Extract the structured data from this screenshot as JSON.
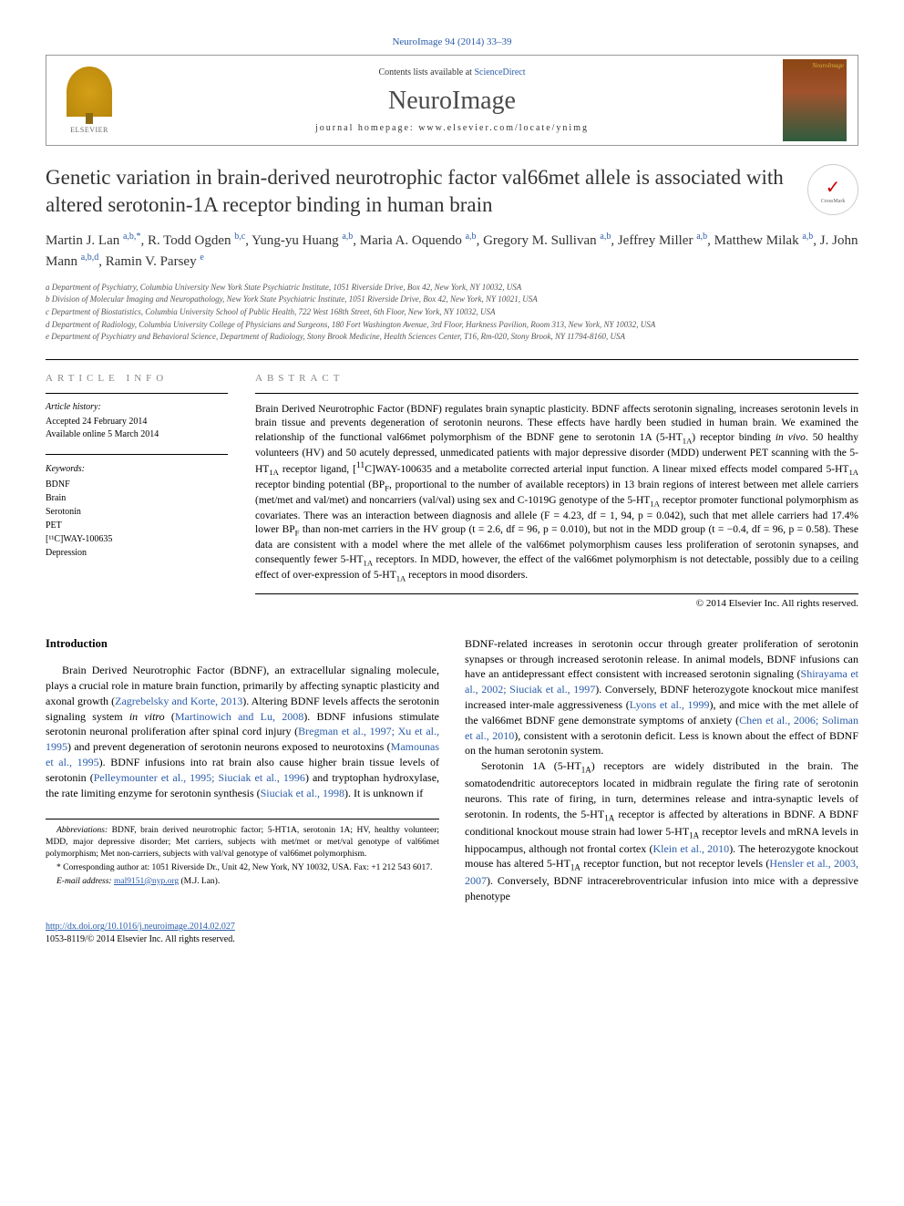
{
  "header": {
    "citation": "NeuroImage 94 (2014) 33–39",
    "contents_prefix": "Contents lists available at ",
    "contents_link": "ScienceDirect",
    "journal_name": "NeuroImage",
    "homepage_label": "journal homepage: www.elsevier.com/locate/ynimg",
    "publisher": "ELSEVIER",
    "thumb_label": "NeuroImage"
  },
  "crossmark": "CrossMark",
  "title": "Genetic variation in brain-derived neurotrophic factor val66met allele is associated with altered serotonin-1A receptor binding in human brain",
  "authors_html": "Martin J. Lan <sup class='sup-link'>a,b,</sup><sup class='sup-link'>*</sup>, R. Todd Ogden <sup class='sup-link'>b,c</sup>, Yung-yu Huang <sup class='sup-link'>a,b</sup>, Maria A. Oquendo <sup class='sup-link'>a,b</sup>, Gregory M. Sullivan <sup class='sup-link'>a,b</sup>, Jeffrey Miller <sup class='sup-link'>a,b</sup>, Matthew Milak <sup class='sup-link'>a,b</sup>, J. John Mann <sup class='sup-link'>a,b,d</sup>, Ramin V. Parsey <sup class='sup-link'>e</sup>",
  "affiliations": [
    "a  Department of Psychiatry, Columbia University New York State Psychiatric Institute, 1051 Riverside Drive, Box 42, New York, NY 10032, USA",
    "b  Division of Molecular Imaging and Neuropathology, New York State Psychiatric Institute, 1051 Riverside Drive, Box 42, New York, NY 10021, USA",
    "c  Department of Biostatistics, Columbia University School of Public Health, 722 West 168th Street, 6th Floor, New York, NY 10032, USA",
    "d  Department of Radiology, Columbia University College of Physicians and Surgeons, 180 Fort Washington Avenue, 3rd Floor, Harkness Pavilion, Room 313, New York, NY 10032, USA",
    "e  Department of Psychiatry and Behavioral Science, Department of Radiology, Stony Brook Medicine, Health Sciences Center, T16, Rm-020, Stony Brook, NY 11794-8160, USA"
  ],
  "info": {
    "heading": "article info",
    "history_label": "Article history:",
    "accepted": "Accepted 24 February 2014",
    "online": "Available online 5 March 2014",
    "keywords_label": "Keywords:",
    "keywords": [
      "BDNF",
      "Brain",
      "Serotonin",
      "PET",
      "[¹¹C]WAY-100635",
      "Depression"
    ]
  },
  "abstract": {
    "heading": "abstract",
    "body_html": "Brain Derived Neurotrophic Factor (BDNF) regulates brain synaptic plasticity. BDNF affects serotonin signaling, increases serotonin levels in brain tissue and prevents degeneration of serotonin neurons. These effects have hardly been studied in human brain. We examined the relationship of the functional val66met polymorphism of the BDNF gene to serotonin 1A (5-HT<sub>1A</sub>) receptor binding <i>in vivo</i>. 50 healthy volunteers (HV) and 50 acutely depressed, unmedicated patients with major depressive disorder (MDD) underwent PET scanning with the 5-HT<sub>1A</sub> receptor ligand, [<sup>11</sup>C]WAY-100635 and a metabolite corrected arterial input function. A linear mixed effects model compared 5-HT<sub>1A</sub> receptor binding potential (BP<sub>F</sub>, proportional to the number of available receptors) in 13 brain regions of interest between met allele carriers (met/met and val/met) and noncarriers (val/val) using sex and C-1019G genotype of the 5-HT<sub>1A</sub> receptor promoter functional polymorphism as covariates. There was an interaction between diagnosis and allele (F = 4.23, df = 1, 94, p = 0.042), such that met allele carriers had 17.4% lower BP<sub>F</sub> than non-met carriers in the HV group (t = 2.6, df = 96, p = 0.010), but not in the MDD group (t = −0.4, df = 96, p = 0.58). These data are consistent with a model where the met allele of the val66met polymorphism causes less proliferation of serotonin synapses, and consequently fewer 5-HT<sub>1A</sub> receptors. In MDD, however, the effect of the val66met polymorphism is not detectable, possibly due to a ceiling effect of over-expression of 5-HT<sub>1A</sub> receptors in mood disorders.",
    "copyright": "© 2014 Elsevier Inc. All rights reserved."
  },
  "body": {
    "intro_heading": "Introduction",
    "col1_html": "Brain Derived Neurotrophic Factor (BDNF), an extracellular signaling molecule, plays a crucial role in mature brain function, primarily by affecting synaptic plasticity and axonal growth (<span class='link'>Zagrebelsky and Korte, 2013</span>). Altering BDNF levels affects the serotonin signaling system <i>in vitro</i> (<span class='link'>Martinowich and Lu, 2008</span>). BDNF infusions stimulate serotonin neuronal proliferation after spinal cord injury (<span class='link'>Bregman et al., 1997; Xu et al., 1995</span>) and prevent degeneration of serotonin neurons exposed to neurotoxins (<span class='link'>Mamounas et al., 1995</span>). BDNF infusions into rat brain also cause higher brain tissue levels of serotonin (<span class='link'>Pelleymounter et al., 1995; Siuciak et al., 1996</span>) and tryptophan hydroxylase, the rate limiting enzyme for serotonin synthesis (<span class='link'>Siuciak et al., 1998</span>). It is unknown if",
    "col2_p1_html": "BDNF-related increases in serotonin occur through greater proliferation of serotonin synapses or through increased serotonin release. In animal models, BDNF infusions can have an antidepressant effect consistent with increased serotonin signaling (<span class='link'>Shirayama et al., 2002; Siuciak et al., 1997</span>). Conversely, BDNF heterozygote knockout mice manifest increased inter-male aggressiveness (<span class='link'>Lyons et al., 1999</span>), and mice with the met allele of the val66met BDNF gene demonstrate symptoms of anxiety (<span class='link'>Chen et al., 2006; Soliman et al., 2010</span>), consistent with a serotonin deficit. Less is known about the effect of BDNF on the human serotonin system.",
    "col2_p2_html": "Serotonin 1A (5-HT<sub>1A</sub>) receptors are widely distributed in the brain. The somatodendritic autoreceptors located in midbrain regulate the firing rate of serotonin neurons. This rate of firing, in turn, determines release and intra-synaptic levels of serotonin. In rodents, the 5-HT<sub>1A</sub> receptor is affected by alterations in BDNF. A BDNF conditional knockout mouse strain had lower 5-HT<sub>1A</sub> receptor levels and mRNA levels in hippocampus, although not frontal cortex (<span class='link'>Klein et al., 2010</span>). The heterozygote knockout mouse has altered 5-HT<sub>1A</sub> receptor function, but not receptor levels (<span class='link'>Hensler et al., 2003, 2007</span>). Conversely, BDNF intracerebroventricular infusion into mice with a depressive phenotype"
  },
  "footnotes": {
    "abbrev_label": "Abbreviations:",
    "abbrev_text": " BDNF, brain derived neurotrophic factor; 5-HT1A, serotonin 1A; HV, healthy volunteer; MDD, major depressive disorder; Met carriers, subjects with met/met or met/val genotype of val66met polymorphism; Met non-carriers, subjects with val/val genotype of val66met polymorphism.",
    "corr_label": "* Corresponding author at:",
    "corr_text": " 1051 Riverside Dr., Unit 42, New York, NY 10032, USA. Fax: +1 212 543 6017.",
    "email_label": "E-mail address:",
    "email": "mal9151@nyp.org",
    "email_suffix": " (M.J. Lan)."
  },
  "footer": {
    "doi": "http://dx.doi.org/10.1016/j.neuroimage.2014.02.027",
    "issn": "1053-8119/© 2014 Elsevier Inc. All rights reserved."
  },
  "colors": {
    "link": "#2a5caa",
    "text": "#000000",
    "muted": "#888888"
  }
}
